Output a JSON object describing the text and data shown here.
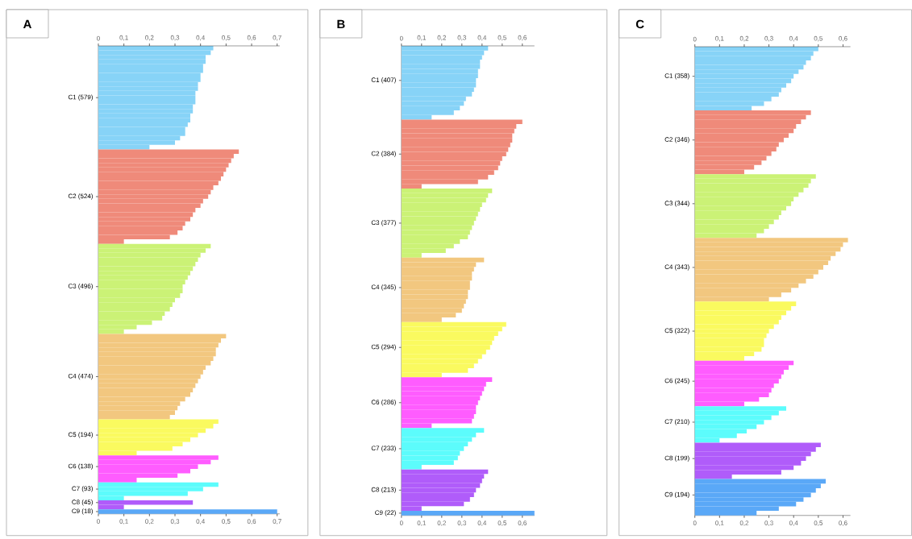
{
  "chart_data": [
    {
      "type": "bar",
      "title": "A",
      "orientation": "horizontal",
      "xlim": [
        0,
        0.71
      ],
      "xticks": [
        0,
        {
          "value": 0.1,
          "label": "0,1"
        },
        {
          "value": 0.2,
          "label": "0,2"
        },
        {
          "value": 0.3,
          "label": "0,3"
        },
        {
          "value": 0.4,
          "label": "0,4"
        },
        {
          "value": 0.5,
          "label": "0,5"
        },
        {
          "value": 0.6,
          "label": "0,6"
        },
        {
          "value": 0.7,
          "label": "0,7"
        }
      ],
      "x2lim": [
        0,
        0.71
      ],
      "x2ticks": [
        0,
        {
          "value": 0.1,
          "label": "0,1"
        },
        {
          "value": 0.2,
          "label": "0,2"
        },
        {
          "value": 0.3,
          "label": "0,3"
        },
        {
          "value": 0.4,
          "label": "0,4"
        },
        {
          "value": 0.5,
          "label": "0,5"
        },
        {
          "value": 0.6,
          "label": "0,6"
        },
        {
          "value": 0.7,
          "label": "0,7"
        }
      ],
      "categories": [
        null,
        null,
        null,
        null,
        null,
        null,
        null,
        null,
        null,
        null,
        null,
        "C1 (579)",
        null,
        null,
        null,
        null,
        null,
        null,
        null,
        null,
        null,
        null,
        null,
        null,
        null,
        null,
        null,
        null,
        null,
        null,
        null,
        null,
        null,
        "C2 (524)",
        null,
        null,
        null,
        null,
        null,
        null,
        null,
        null,
        null,
        null,
        null,
        null,
        null,
        null,
        null,
        null,
        null,
        null,
        null,
        "C3 (496)",
        null,
        null,
        null,
        null,
        null,
        null,
        null,
        null,
        null,
        null,
        null,
        null,
        null,
        null,
        null,
        null,
        null,
        null,
        null,
        "C4 (474)",
        null,
        null,
        null,
        null,
        null,
        null,
        null,
        null,
        null,
        null,
        null,
        null,
        "C5 (194)",
        null,
        null,
        null,
        null,
        null,
        null,
        "C6 (138)",
        null,
        null,
        null,
        null,
        "C7 (93)",
        null,
        null,
        "C8 (45)",
        null,
        "C9 (18)"
      ],
      "values": [
        0.45,
        0.44,
        0.42,
        0.42,
        0.41,
        0.41,
        0.4,
        0.4,
        0.39,
        0.39,
        0.38,
        0.38,
        0.38,
        0.37,
        0.37,
        0.36,
        0.36,
        0.35,
        0.34,
        0.34,
        0.32,
        0.3,
        0.2,
        0.55,
        0.53,
        0.52,
        0.51,
        0.5,
        0.49,
        0.48,
        0.47,
        0.45,
        0.44,
        0.43,
        0.41,
        0.4,
        0.38,
        0.37,
        0.36,
        0.34,
        0.33,
        0.31,
        0.28,
        0.1,
        0.44,
        0.42,
        0.4,
        0.39,
        0.38,
        0.37,
        0.36,
        0.35,
        0.34,
        0.33,
        0.33,
        0.32,
        0.3,
        0.29,
        0.28,
        0.26,
        0.25,
        0.21,
        0.15,
        0.1,
        0.5,
        0.48,
        0.47,
        0.46,
        0.46,
        0.45,
        0.44,
        0.42,
        0.41,
        0.4,
        0.39,
        0.38,
        0.37,
        0.36,
        0.34,
        0.32,
        0.31,
        0.3,
        0.28,
        0.47,
        0.45,
        0.42,
        0.39,
        0.36,
        0.33,
        0.29,
        0.15,
        0.47,
        0.44,
        0.39,
        0.36,
        0.31,
        0.15,
        0.47,
        0.41,
        0.35,
        0.1,
        0.37,
        0.1,
        0.7
      ],
      "colors": [
        "#87d3f7",
        "#87d3f7",
        "#87d3f7",
        "#87d3f7",
        "#87d3f7",
        "#87d3f7",
        "#87d3f7",
        "#87d3f7",
        "#87d3f7",
        "#87d3f7",
        "#87d3f7",
        "#87d3f7",
        "#87d3f7",
        "#87d3f7",
        "#87d3f7",
        "#87d3f7",
        "#87d3f7",
        "#87d3f7",
        "#87d3f7",
        "#87d3f7",
        "#87d3f7",
        "#87d3f7",
        "#87d3f7",
        "#ef8a7a",
        "#ef8a7a",
        "#ef8a7a",
        "#ef8a7a",
        "#ef8a7a",
        "#ef8a7a",
        "#ef8a7a",
        "#ef8a7a",
        "#ef8a7a",
        "#ef8a7a",
        "#ef8a7a",
        "#ef8a7a",
        "#ef8a7a",
        "#ef8a7a",
        "#ef8a7a",
        "#ef8a7a",
        "#ef8a7a",
        "#ef8a7a",
        "#ef8a7a",
        "#ef8a7a",
        "#ef8a7a",
        "#cbf276",
        "#cbf276",
        "#cbf276",
        "#cbf276",
        "#cbf276",
        "#cbf276",
        "#cbf276",
        "#cbf276",
        "#cbf276",
        "#cbf276",
        "#cbf276",
        "#cbf276",
        "#cbf276",
        "#cbf276",
        "#cbf276",
        "#cbf276",
        "#cbf276",
        "#cbf276",
        "#cbf276",
        "#cbf276",
        "#f2c77f",
        "#f2c77f",
        "#f2c77f",
        "#f2c77f",
        "#f2c77f",
        "#f2c77f",
        "#f2c77f",
        "#f2c77f",
        "#f2c77f",
        "#f2c77f",
        "#f2c77f",
        "#f2c77f",
        "#f2c77f",
        "#f2c77f",
        "#f2c77f",
        "#f2c77f",
        "#f2c77f",
        "#f2c77f",
        "#f2c77f",
        "#fafa5f",
        "#fafa5f",
        "#fafa5f",
        "#fafa5f",
        "#fafa5f",
        "#fafa5f",
        "#fafa5f",
        "#fafa5f",
        "#ff5cff",
        "#ff5cff",
        "#ff5cff",
        "#ff5cff",
        "#ff5cff",
        "#ff5cff",
        "#5cfcfc",
        "#5cfcfc",
        "#5cfcfc",
        "#5cfcfc",
        "#b05cfa",
        "#b05cfa",
        "#5aa8f7"
      ]
    },
    {
      "type": "bar",
      "title": "B",
      "orientation": "horizontal",
      "xlim": [
        0,
        0.66
      ],
      "xticks": [
        0,
        {
          "value": 0.1,
          "label": "0,1"
        },
        {
          "value": 0.2,
          "label": "0,2"
        },
        {
          "value": 0.3,
          "label": "0,3"
        },
        {
          "value": 0.4,
          "label": "0,4"
        },
        {
          "value": 0.5,
          "label": "0,5"
        },
        {
          "value": 0.6,
          "label": "0,6"
        }
      ],
      "x2lim": [
        0,
        0.66
      ],
      "x2ticks": [
        0,
        {
          "value": 0.1,
          "label": "0,1"
        },
        {
          "value": 0.2,
          "label": "0,2"
        },
        {
          "value": 0.3,
          "label": "0,3"
        },
        {
          "value": 0.4,
          "label": "0,4"
        },
        {
          "value": 0.5,
          "label": "0,5"
        },
        {
          "value": 0.6,
          "label": "0,6"
        }
      ],
      "categories": [
        null,
        null,
        null,
        null,
        null,
        null,
        null,
        "C1 (407)",
        null,
        null,
        null,
        null,
        null,
        null,
        null,
        null,
        null,
        null,
        null,
        null,
        null,
        null,
        null,
        "C2 (384)",
        null,
        null,
        null,
        null,
        null,
        null,
        null,
        null,
        null,
        null,
        null,
        null,
        null,
        null,
        "C3 (377)",
        null,
        null,
        null,
        null,
        null,
        null,
        null,
        null,
        null,
        null,
        null,
        null,
        null,
        "C4 (345)",
        null,
        null,
        null,
        null,
        null,
        null,
        null,
        null,
        null,
        null,
        null,
        null,
        "C5 (294)",
        null,
        null,
        null,
        null,
        null,
        null,
        null,
        null,
        null,
        null,
        null,
        "C6 (286)",
        null,
        null,
        null,
        null,
        null,
        null,
        null,
        null,
        null,
        "C7 (233)",
        null,
        null,
        null,
        null,
        null,
        null,
        null,
        null,
        "C8 (213)",
        null,
        null,
        null,
        null,
        "C9 (22)"
      ],
      "values": [
        0.43,
        0.41,
        0.4,
        0.39,
        0.39,
        0.38,
        0.38,
        0.37,
        0.37,
        0.36,
        0.35,
        0.32,
        0.31,
        0.29,
        0.26,
        0.15,
        0.6,
        0.57,
        0.56,
        0.55,
        0.55,
        0.54,
        0.53,
        0.52,
        0.5,
        0.49,
        0.48,
        0.46,
        0.43,
        0.38,
        0.1,
        0.45,
        0.43,
        0.42,
        0.4,
        0.39,
        0.38,
        0.37,
        0.36,
        0.35,
        0.34,
        0.33,
        0.29,
        0.26,
        0.22,
        0.1,
        0.41,
        0.37,
        0.36,
        0.35,
        0.35,
        0.34,
        0.34,
        0.33,
        0.33,
        0.32,
        0.31,
        0.3,
        0.27,
        0.2,
        0.52,
        0.5,
        0.48,
        0.46,
        0.45,
        0.44,
        0.42,
        0.4,
        0.38,
        0.36,
        0.33,
        0.2,
        0.45,
        0.42,
        0.41,
        0.4,
        0.39,
        0.38,
        0.37,
        0.37,
        0.36,
        0.35,
        0.15,
        0.41,
        0.37,
        0.35,
        0.33,
        0.31,
        0.29,
        0.28,
        0.26,
        0.1,
        0.43,
        0.41,
        0.4,
        0.39,
        0.37,
        0.36,
        0.34,
        0.31,
        0.1,
        0.66
      ],
      "colors": [
        "#87d3f7",
        "#87d3f7",
        "#87d3f7",
        "#87d3f7",
        "#87d3f7",
        "#87d3f7",
        "#87d3f7",
        "#87d3f7",
        "#87d3f7",
        "#87d3f7",
        "#87d3f7",
        "#87d3f7",
        "#87d3f7",
        "#87d3f7",
        "#87d3f7",
        "#87d3f7",
        "#ef8a7a",
        "#ef8a7a",
        "#ef8a7a",
        "#ef8a7a",
        "#ef8a7a",
        "#ef8a7a",
        "#ef8a7a",
        "#ef8a7a",
        "#ef8a7a",
        "#ef8a7a",
        "#ef8a7a",
        "#ef8a7a",
        "#ef8a7a",
        "#ef8a7a",
        "#ef8a7a",
        "#cbf276",
        "#cbf276",
        "#cbf276",
        "#cbf276",
        "#cbf276",
        "#cbf276",
        "#cbf276",
        "#cbf276",
        "#cbf276",
        "#cbf276",
        "#cbf276",
        "#cbf276",
        "#cbf276",
        "#cbf276",
        "#cbf276",
        "#f2c77f",
        "#f2c77f",
        "#f2c77f",
        "#f2c77f",
        "#f2c77f",
        "#f2c77f",
        "#f2c77f",
        "#f2c77f",
        "#f2c77f",
        "#f2c77f",
        "#f2c77f",
        "#f2c77f",
        "#f2c77f",
        "#f2c77f",
        "#fafa5f",
        "#fafa5f",
        "#fafa5f",
        "#fafa5f",
        "#fafa5f",
        "#fafa5f",
        "#fafa5f",
        "#fafa5f",
        "#fafa5f",
        "#fafa5f",
        "#fafa5f",
        "#fafa5f",
        "#ff5cff",
        "#ff5cff",
        "#ff5cff",
        "#ff5cff",
        "#ff5cff",
        "#ff5cff",
        "#ff5cff",
        "#ff5cff",
        "#ff5cff",
        "#ff5cff",
        "#ff5cff",
        "#5cfcfc",
        "#5cfcfc",
        "#5cfcfc",
        "#5cfcfc",
        "#5cfcfc",
        "#5cfcfc",
        "#5cfcfc",
        "#5cfcfc",
        "#5cfcfc",
        "#b05cfa",
        "#b05cfa",
        "#b05cfa",
        "#b05cfa",
        "#b05cfa",
        "#b05cfa",
        "#b05cfa",
        "#b05cfa",
        "#b05cfa",
        "#5aa8f7"
      ]
    },
    {
      "type": "bar",
      "title": "C",
      "orientation": "horizontal",
      "xlim": [
        0,
        0.63
      ],
      "xticks": [
        0,
        {
          "value": 0.1,
          "label": "0,1"
        },
        {
          "value": 0.2,
          "label": "0,2"
        },
        {
          "value": 0.3,
          "label": "0,3"
        },
        {
          "value": 0.4,
          "label": "0,4"
        },
        {
          "value": 0.5,
          "label": "0,5"
        },
        {
          "value": 0.6,
          "label": "0,6"
        }
      ],
      "x2lim": [
        0,
        0.63
      ],
      "x2ticks": [
        0,
        {
          "value": 0.1,
          "label": "0,1"
        },
        {
          "value": 0.2,
          "label": "0,2"
        },
        {
          "value": 0.3,
          "label": "0,3"
        },
        {
          "value": 0.4,
          "label": "0,4"
        },
        {
          "value": 0.5,
          "label": "0,5"
        },
        {
          "value": 0.6,
          "label": "0,6"
        }
      ],
      "categories": [
        null,
        null,
        null,
        null,
        null,
        null,
        "C1 (358)",
        null,
        null,
        null,
        null,
        null,
        null,
        null,
        null,
        null,
        null,
        null,
        null,
        null,
        "C2 (346)",
        null,
        null,
        null,
        null,
        null,
        null,
        null,
        null,
        null,
        null,
        null,
        null,
        null,
        "C3 (344)",
        null,
        null,
        null,
        null,
        null,
        null,
        null,
        null,
        null,
        null,
        null,
        null,
        null,
        "C4 (343)",
        null,
        null,
        null,
        null,
        null,
        null,
        null,
        null,
        null,
        null,
        null,
        null,
        null,
        "C5 (322)",
        null,
        null,
        null,
        null,
        null,
        null,
        null,
        null,
        null,
        null,
        "C6 (245)",
        null,
        null,
        null,
        null,
        null,
        null,
        null,
        null,
        "C7 (210)",
        null,
        null,
        null,
        null,
        null,
        null,
        null,
        "C8 (199)",
        null,
        null,
        null,
        null,
        null,
        null,
        null,
        "C9 (194)",
        null,
        null,
        null,
        null
      ],
      "values": [
        0.5,
        0.48,
        0.47,
        0.45,
        0.44,
        0.42,
        0.4,
        0.39,
        0.37,
        0.35,
        0.34,
        0.31,
        0.28,
        0.23,
        0.47,
        0.45,
        0.43,
        0.41,
        0.4,
        0.38,
        0.36,
        0.34,
        0.33,
        0.31,
        0.29,
        0.27,
        0.24,
        0.2,
        0.49,
        0.47,
        0.46,
        0.44,
        0.42,
        0.4,
        0.39,
        0.37,
        0.35,
        0.34,
        0.32,
        0.3,
        0.28,
        0.25,
        0.62,
        0.6,
        0.59,
        0.57,
        0.55,
        0.54,
        0.52,
        0.5,
        0.48,
        0.45,
        0.42,
        0.39,
        0.35,
        0.3,
        0.41,
        0.39,
        0.37,
        0.35,
        0.34,
        0.32,
        0.3,
        0.29,
        0.28,
        0.28,
        0.27,
        0.24,
        0.2,
        0.4,
        0.38,
        0.36,
        0.35,
        0.34,
        0.32,
        0.31,
        0.3,
        0.26,
        0.2,
        0.37,
        0.34,
        0.31,
        0.28,
        0.25,
        0.21,
        0.17,
        0.1,
        0.51,
        0.49,
        0.47,
        0.45,
        0.43,
        0.4,
        0.35,
        0.15,
        0.53,
        0.51,
        0.49,
        0.47,
        0.44,
        0.41,
        0.34,
        0.25
      ],
      "colors": [
        "#87d3f7",
        "#87d3f7",
        "#87d3f7",
        "#87d3f7",
        "#87d3f7",
        "#87d3f7",
        "#87d3f7",
        "#87d3f7",
        "#87d3f7",
        "#87d3f7",
        "#87d3f7",
        "#87d3f7",
        "#87d3f7",
        "#87d3f7",
        "#ef8a7a",
        "#ef8a7a",
        "#ef8a7a",
        "#ef8a7a",
        "#ef8a7a",
        "#ef8a7a",
        "#ef8a7a",
        "#ef8a7a",
        "#ef8a7a",
        "#ef8a7a",
        "#ef8a7a",
        "#ef8a7a",
        "#ef8a7a",
        "#ef8a7a",
        "#cbf276",
        "#cbf276",
        "#cbf276",
        "#cbf276",
        "#cbf276",
        "#cbf276",
        "#cbf276",
        "#cbf276",
        "#cbf276",
        "#cbf276",
        "#cbf276",
        "#cbf276",
        "#cbf276",
        "#cbf276",
        "#f2c77f",
        "#f2c77f",
        "#f2c77f",
        "#f2c77f",
        "#f2c77f",
        "#f2c77f",
        "#f2c77f",
        "#f2c77f",
        "#f2c77f",
        "#f2c77f",
        "#f2c77f",
        "#f2c77f",
        "#f2c77f",
        "#f2c77f",
        "#fafa5f",
        "#fafa5f",
        "#fafa5f",
        "#fafa5f",
        "#fafa5f",
        "#fafa5f",
        "#fafa5f",
        "#fafa5f",
        "#fafa5f",
        "#fafa5f",
        "#fafa5f",
        "#fafa5f",
        "#fafa5f",
        "#ff5cff",
        "#ff5cff",
        "#ff5cff",
        "#ff5cff",
        "#ff5cff",
        "#ff5cff",
        "#ff5cff",
        "#ff5cff",
        "#ff5cff",
        "#ff5cff",
        "#5cfcfc",
        "#5cfcfc",
        "#5cfcfc",
        "#5cfcfc",
        "#5cfcfc",
        "#5cfcfc",
        "#5cfcfc",
        "#5cfcfc",
        "#b05cfa",
        "#b05cfa",
        "#b05cfa",
        "#b05cfa",
        "#b05cfa",
        "#b05cfa",
        "#b05cfa",
        "#b05cfa",
        "#5aa8f7",
        "#5aa8f7",
        "#5aa8f7",
        "#5aa8f7",
        "#5aa8f7",
        "#5aa8f7",
        "#5aa8f7",
        "#5aa8f7"
      ]
    }
  ]
}
